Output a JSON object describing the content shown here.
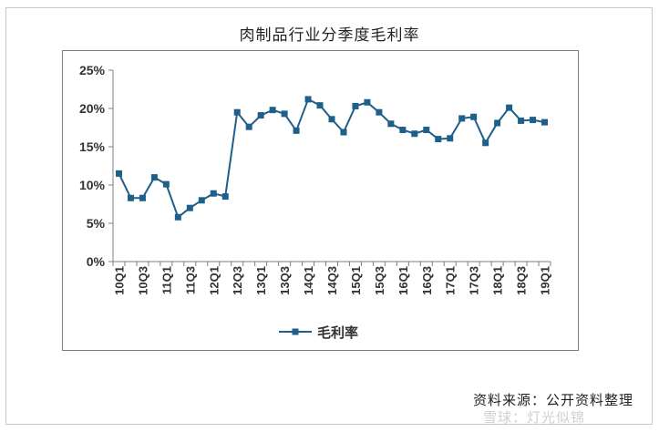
{
  "title": "肉制品行业分季度毛利率",
  "source": "资料来源：公开资料整理",
  "watermark": "雪球：灯光似锦",
  "chart_data": {
    "type": "line",
    "title": "肉制品行业分季度毛利率",
    "xlabel": "",
    "ylabel": "",
    "ylim": [
      0,
      25
    ],
    "yticks": [
      "0%",
      "5%",
      "10%",
      "15%",
      "20%",
      "25%"
    ],
    "grid": false,
    "legend": "bottom",
    "categories": [
      "10Q1",
      "10Q2",
      "10Q3",
      "10Q4",
      "11Q1",
      "11Q2",
      "11Q3",
      "11Q4",
      "12Q1",
      "12Q2",
      "12Q3",
      "12Q4",
      "13Q1",
      "13Q2",
      "13Q3",
      "13Q4",
      "14Q1",
      "14Q2",
      "14Q3",
      "14Q4",
      "15Q1",
      "15Q2",
      "15Q3",
      "15Q4",
      "16Q1",
      "16Q2",
      "16Q3",
      "16Q4",
      "17Q1",
      "17Q2",
      "17Q3",
      "17Q4",
      "18Q1",
      "18Q2",
      "18Q3",
      "18Q4",
      "19Q1"
    ],
    "tick_labels": [
      "10Q1",
      "10Q3",
      "11Q1",
      "11Q3",
      "12Q1",
      "12Q3",
      "13Q1",
      "13Q3",
      "14Q1",
      "14Q3",
      "15Q1",
      "15Q3",
      "16Q1",
      "16Q3",
      "17Q1",
      "17Q3",
      "18Q1",
      "18Q3",
      "19Q1"
    ],
    "series": [
      {
        "name": "毛利率",
        "color": "#1f5f8b",
        "values": [
          11.5,
          8.3,
          8.3,
          11.0,
          10.1,
          5.8,
          7.0,
          8.0,
          8.9,
          8.5,
          19.5,
          17.6,
          19.1,
          19.8,
          19.3,
          17.1,
          21.2,
          20.4,
          18.6,
          16.9,
          20.3,
          20.8,
          19.5,
          18.0,
          17.2,
          16.7,
          17.2,
          16.0,
          16.1,
          18.7,
          18.9,
          15.5,
          18.1,
          20.1,
          18.4,
          18.5,
          18.2
        ]
      }
    ]
  }
}
